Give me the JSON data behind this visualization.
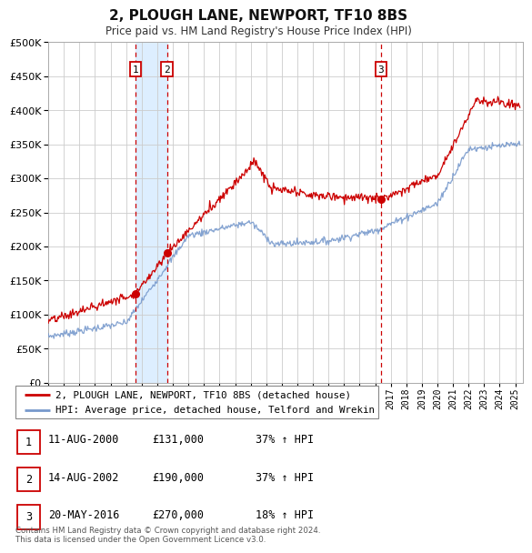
{
  "title": "2, PLOUGH LANE, NEWPORT, TF10 8BS",
  "subtitle": "Price paid vs. HM Land Registry's House Price Index (HPI)",
  "ylim": [
    0,
    500000
  ],
  "yticks": [
    0,
    50000,
    100000,
    150000,
    200000,
    250000,
    300000,
    350000,
    400000,
    450000,
    500000
  ],
  "xlim_start": 1995.0,
  "xlim_end": 2025.5,
  "sale_color": "#cc0000",
  "hpi_color": "#7799cc",
  "shading_color": "#ddeeff",
  "vline_color": "#cc0000",
  "transactions": [
    {
      "label": "1",
      "date_num": 2000.61,
      "price": 131000,
      "date_str": "11-AUG-2000",
      "pct": "37%",
      "dir": "↑"
    },
    {
      "label": "2",
      "date_num": 2002.62,
      "price": 190000,
      "date_str": "14-AUG-2002",
      "pct": "37%",
      "dir": "↑"
    },
    {
      "label": "3",
      "date_num": 2016.38,
      "price": 270000,
      "date_str": "20-MAY-2016",
      "pct": "18%",
      "dir": "↑"
    }
  ],
  "legend_line1": "2, PLOUGH LANE, NEWPORT, TF10 8BS (detached house)",
  "legend_line2": "HPI: Average price, detached house, Telford and Wrekin",
  "footer1": "Contains HM Land Registry data © Crown copyright and database right 2024.",
  "footer2": "This data is licensed under the Open Government Licence v3.0.",
  "background_color": "#ffffff",
  "grid_color": "#cccccc"
}
